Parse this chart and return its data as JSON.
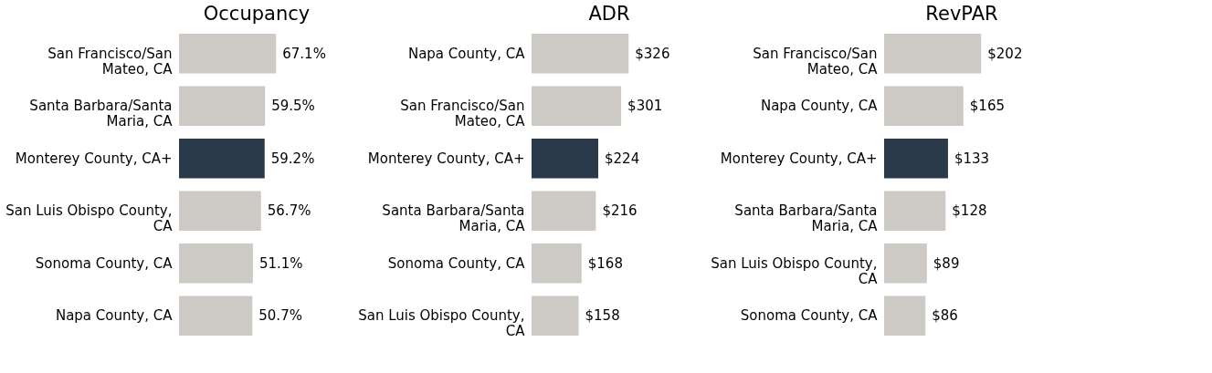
{
  "chart_data": [
    {
      "type": "bar",
      "orientation": "horizontal",
      "title": "Occupancy",
      "categories": [
        "San Francisco/San Mateo, CA",
        "Santa Barbara/Santa Maria, CA",
        "Monterey County, CA+",
        "San Luis Obispo County, CA",
        "Sonoma County, CA",
        "Napa County, CA"
      ],
      "values": [
        67.1,
        59.5,
        59.2,
        56.7,
        51.1,
        50.7
      ],
      "value_labels": [
        "67.1%",
        "59.5%",
        "59.2%",
        "56.7%",
        "51.1%",
        "50.7%"
      ],
      "colors": [
        "#cdcac6",
        "#cdcac6",
        "#2b3a4a",
        "#cdcac6",
        "#cdcac6",
        "#cdcac6"
      ]
    },
    {
      "type": "bar",
      "orientation": "horizontal",
      "title": "ADR",
      "categories": [
        "Napa County, CA",
        "San Francisco/San Mateo, CA",
        "Monterey County, CA+",
        "Santa Barbara/Santa Maria, CA",
        "Sonoma County, CA",
        "San Luis Obispo County, CA"
      ],
      "values": [
        326,
        301,
        224,
        216,
        168,
        158
      ],
      "value_labels": [
        "$326",
        "$301",
        "$224",
        "$216",
        "$168",
        "$158"
      ],
      "colors": [
        "#cdcac6",
        "#cdcac6",
        "#2b3a4a",
        "#cdcac6",
        "#cdcac6",
        "#cdcac6"
      ]
    },
    {
      "type": "bar",
      "orientation": "horizontal",
      "title": "RevPAR",
      "categories": [
        "San Francisco/San Mateo, CA",
        "Napa County, CA",
        "Monterey County, CA+",
        "Santa Barbara/Santa Maria, CA",
        "San Luis Obispo County, CA",
        "Sonoma County, CA"
      ],
      "values": [
        202,
        165,
        133,
        128,
        89,
        86
      ],
      "value_labels": [
        "$202",
        "$165",
        "$133",
        "$128",
        "$89",
        "$86"
      ],
      "colors": [
        "#cdcac6",
        "#cdcac6",
        "#2b3a4a",
        "#cdcac6",
        "#cdcac6",
        "#cdcac6"
      ]
    }
  ]
}
